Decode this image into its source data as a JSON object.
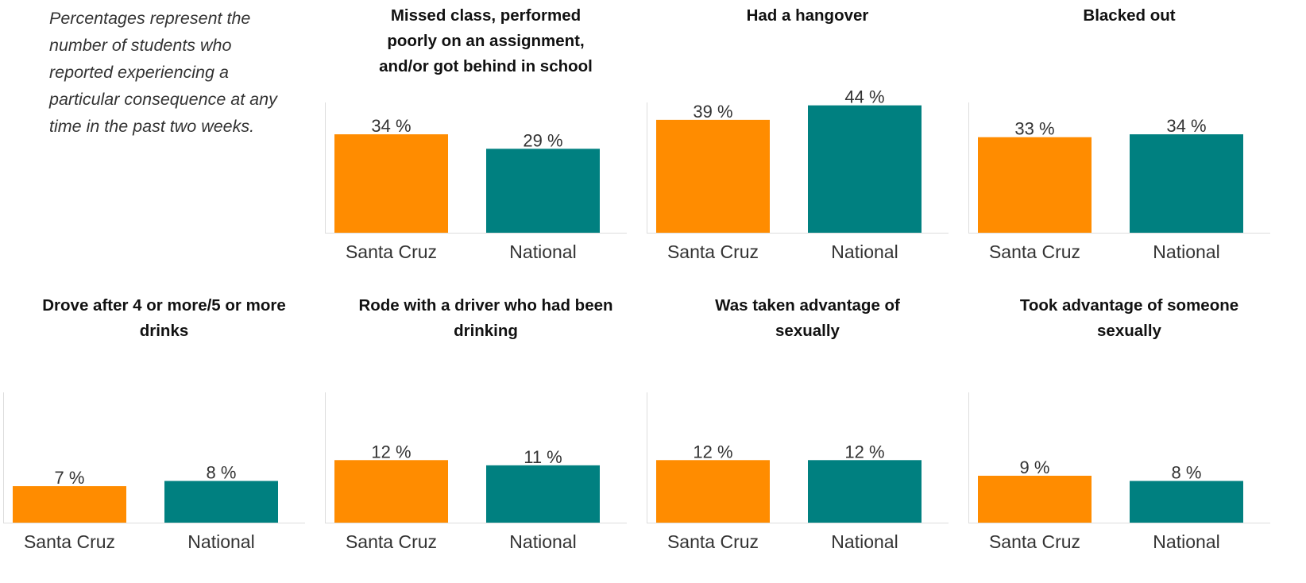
{
  "note": "Percentages represent the number of students who reported experiencing a particular consequence at any time in the past two weeks.",
  "colors": {
    "santa_cruz": "#FF8C00",
    "national": "#008080",
    "axis": "#dddddd",
    "label": "#333333"
  },
  "chart_data": [
    {
      "type": "bar",
      "title": "Missed class, performed poorly on an assignment, and/or got behind in school",
      "categories": [
        "Santa Cruz",
        "National"
      ],
      "values": [
        34,
        29
      ],
      "value_labels": [
        "34 %",
        "29 %"
      ],
      "ylim": [
        0,
        45
      ]
    },
    {
      "type": "bar",
      "title": "Had a hangover",
      "categories": [
        "Santa Cruz",
        "National"
      ],
      "values": [
        39,
        44
      ],
      "value_labels": [
        "39 %",
        "44 %"
      ],
      "ylim": [
        0,
        45
      ]
    },
    {
      "type": "bar",
      "title": "Blacked out",
      "categories": [
        "Santa Cruz",
        "National"
      ],
      "values": [
        33,
        34
      ],
      "value_labels": [
        "33 %",
        "34 %"
      ],
      "ylim": [
        0,
        45
      ]
    },
    {
      "type": "bar",
      "title": "Drove after 4 or more/5 or more drinks",
      "categories": [
        "Santa Cruz",
        "National"
      ],
      "values": [
        7,
        8
      ],
      "value_labels": [
        "7 %",
        "8 %"
      ],
      "ylim": [
        0,
        25
      ]
    },
    {
      "type": "bar",
      "title": "Rode with a driver who had been drinking",
      "categories": [
        "Santa Cruz",
        "National"
      ],
      "values": [
        12,
        11
      ],
      "value_labels": [
        "12 %",
        "11 %"
      ],
      "ylim": [
        0,
        25
      ]
    },
    {
      "type": "bar",
      "title": "Was taken advantage of sexually",
      "categories": [
        "Santa Cruz",
        "National"
      ],
      "values": [
        12,
        12
      ],
      "value_labels": [
        "12 %",
        "12 %"
      ],
      "ylim": [
        0,
        25
      ]
    },
    {
      "type": "bar",
      "title": "Took advantage of someone sexually",
      "categories": [
        "Santa Cruz",
        "National"
      ],
      "values": [
        9,
        8
      ],
      "value_labels": [
        "9 %",
        "8 %"
      ],
      "ylim": [
        0,
        25
      ]
    }
  ]
}
